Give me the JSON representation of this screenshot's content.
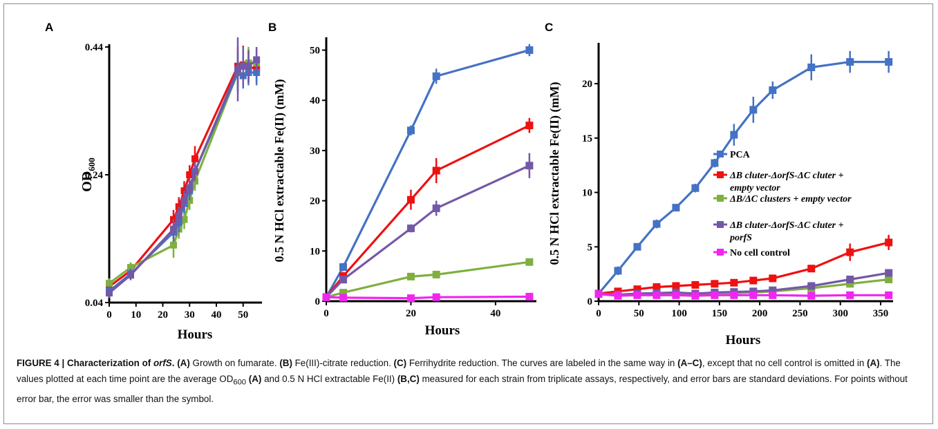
{
  "colors": {
    "blue": "#4472c4",
    "red": "#ee1111",
    "green": "#7fb03f",
    "purple": "#7458a8",
    "magenta": "#f025f0"
  },
  "chart_data": [
    {
      "panel_label": "A",
      "type": "line",
      "xlabel": "Hours",
      "ylabel": "OD600",
      "ylabel_main": "OD",
      "ylabel_sub": "600",
      "xlim": [
        0,
        56
      ],
      "ylim": [
        0.04,
        0.44
      ],
      "xticks": [
        0,
        10,
        20,
        30,
        40,
        50
      ],
      "yticks": [
        0.04,
        0.24,
        0.44
      ],
      "ytick_labels": [
        "0.04",
        "0.24",
        "0.44"
      ],
      "series": [
        {
          "color_key": "red",
          "x": [
            0,
            8,
            24,
            26,
            28,
            30,
            32,
            48,
            50,
            52,
            55
          ],
          "y": [
            0.065,
            0.09,
            0.17,
            0.19,
            0.215,
            0.24,
            0.265,
            0.41,
            0.412,
            0.41,
            0.405
          ],
          "err": [
            0.008,
            0.008,
            0.015,
            0.015,
            0.015,
            0.015,
            0.02,
            0.03,
            0.03,
            0.025,
            0.02
          ]
        },
        {
          "color_key": "green",
          "x": [
            0,
            8,
            24,
            26,
            28,
            30,
            32,
            48,
            50,
            52,
            55
          ],
          "y": [
            0.07,
            0.095,
            0.13,
            0.155,
            0.17,
            0.2,
            0.23,
            0.4,
            0.41,
            0.415,
            0.415
          ],
          "err": [
            0.008,
            0.008,
            0.02,
            0.015,
            0.015,
            0.015,
            0.015,
            0.03,
            0.03,
            0.025,
            0.02
          ]
        },
        {
          "color_key": "blue",
          "x": [
            0,
            8,
            24,
            26,
            28,
            30,
            32,
            48,
            50,
            52,
            55
          ],
          "y": [
            0.058,
            0.085,
            0.15,
            0.165,
            0.195,
            0.215,
            0.245,
            0.4,
            0.395,
            0.4,
            0.4
          ],
          "err": [
            0.008,
            0.008,
            0.015,
            0.015,
            0.015,
            0.015,
            0.015,
            0.03,
            0.02,
            0.02,
            0.02
          ]
        },
        {
          "color_key": "purple",
          "x": [
            0,
            8,
            24,
            26,
            28,
            30,
            32,
            48,
            50,
            52,
            55
          ],
          "y": [
            0.055,
            0.083,
            0.155,
            0.175,
            0.2,
            0.22,
            0.245,
            0.405,
            0.41,
            0.41,
            0.42
          ],
          "err": [
            0.008,
            0.008,
            0.015,
            0.015,
            0.015,
            0.015,
            0.015,
            0.05,
            0.03,
            0.025,
            0.02
          ]
        }
      ]
    },
    {
      "panel_label": "B",
      "type": "line",
      "xlabel": "Hours",
      "ylabel": "0.5 N HCl extractable Fe(II) (mM)",
      "xlim": [
        0,
        49
      ],
      "ylim": [
        0,
        52
      ],
      "xticks": [
        0,
        20,
        40
      ],
      "yticks": [
        0,
        10,
        20,
        30,
        40,
        50
      ],
      "series": [
        {
          "color_key": "blue",
          "x": [
            0,
            4,
            20,
            26,
            48
          ],
          "y": [
            0.8,
            6.8,
            34,
            44.8,
            50
          ],
          "err": [
            0.3,
            0.8,
            1.0,
            1.5,
            1.2
          ]
        },
        {
          "color_key": "red",
          "x": [
            0,
            4,
            20,
            26,
            48
          ],
          "y": [
            0.8,
            5.0,
            20.2,
            26,
            35
          ],
          "err": [
            0.3,
            0.8,
            2.0,
            2.5,
            1.5
          ]
        },
        {
          "color_key": "purple",
          "x": [
            0,
            4,
            20,
            26,
            48
          ],
          "y": [
            0.8,
            4.3,
            14.5,
            18.5,
            27
          ],
          "err": [
            0.3,
            0.6,
            0.8,
            1.5,
            2.5
          ]
        },
        {
          "color_key": "green",
          "x": [
            0,
            4,
            20,
            26,
            48
          ],
          "y": [
            0.8,
            1.7,
            4.9,
            5.3,
            7.8
          ],
          "err": [
            0.3,
            0.4,
            0.5,
            0.5,
            0.6
          ]
        },
        {
          "color_key": "magenta",
          "x": [
            0,
            4,
            20,
            26,
            48
          ],
          "y": [
            0.8,
            0.7,
            0.6,
            0.8,
            0.9
          ],
          "err": [
            0.2,
            0.2,
            0.3,
            0.3,
            0.3
          ]
        }
      ]
    },
    {
      "panel_label": "C",
      "type": "line",
      "xlabel": "Hours",
      "ylabel": "0.5 N HCl extractable Fe(II) (mM)",
      "xlim": [
        0,
        362
      ],
      "ylim": [
        0,
        23.5
      ],
      "xticks": [
        0,
        50,
        100,
        150,
        200,
        250,
        300,
        350
      ],
      "yticks": [
        0,
        5,
        10,
        15,
        20
      ],
      "legend_position": "center-right",
      "series": [
        {
          "color_key": "blue",
          "name": "PCA",
          "x": [
            0,
            24,
            48,
            72,
            96,
            120,
            144,
            168,
            192,
            216,
            264,
            312,
            360
          ],
          "y": [
            0.7,
            2.8,
            5.0,
            7.1,
            8.6,
            10.4,
            12.7,
            15.3,
            17.6,
            19.4,
            21.5,
            22.0,
            22.0
          ],
          "err": [
            0.3,
            0.4,
            0.3,
            0.4,
            0.3,
            0.4,
            0.4,
            1.0,
            1.2,
            0.8,
            1.2,
            1.0,
            1.0
          ]
        },
        {
          "color_key": "red",
          "name": "ΔB cluter-ΔorfS-ΔC cluter + empty vector",
          "x": [
            0,
            24,
            48,
            72,
            96,
            120,
            144,
            168,
            192,
            216,
            264,
            312,
            360
          ],
          "y": [
            0.7,
            0.9,
            1.1,
            1.3,
            1.4,
            1.5,
            1.6,
            1.7,
            1.9,
            2.1,
            3.0,
            4.5,
            5.4
          ],
          "err": [
            0.2,
            0.2,
            0.2,
            0.2,
            0.2,
            0.2,
            0.2,
            0.2,
            0.2,
            0.2,
            0.3,
            0.8,
            0.7
          ]
        },
        {
          "color_key": "green",
          "name": "ΔB/ΔC clusters + empty vector",
          "x": [
            0,
            24,
            48,
            72,
            96,
            120,
            144,
            168,
            192,
            216,
            264,
            312,
            360
          ],
          "y": [
            0.7,
            0.6,
            0.6,
            0.65,
            0.7,
            0.65,
            0.7,
            0.75,
            0.8,
            0.9,
            1.2,
            1.6,
            2.0
          ],
          "err": [
            0.2,
            0.2,
            0.2,
            0.2,
            0.2,
            0.2,
            0.2,
            0.2,
            0.2,
            0.2,
            0.2,
            0.2,
            0.3
          ]
        },
        {
          "color_key": "purple",
          "name": "ΔB cluter-ΔorfS-ΔC cluter + porfS",
          "x": [
            0,
            24,
            48,
            72,
            96,
            120,
            144,
            168,
            192,
            216,
            264,
            312,
            360
          ],
          "y": [
            0.7,
            0.6,
            0.7,
            0.75,
            0.8,
            0.7,
            0.8,
            0.85,
            0.9,
            1.0,
            1.4,
            2.0,
            2.6
          ],
          "err": [
            0.2,
            0.2,
            0.2,
            0.2,
            0.2,
            0.2,
            0.2,
            0.2,
            0.2,
            0.2,
            0.2,
            0.3,
            0.3
          ]
        },
        {
          "color_key": "magenta",
          "name": "No cell control",
          "x": [
            0,
            24,
            48,
            72,
            96,
            120,
            144,
            168,
            192,
            216,
            264,
            312,
            360
          ],
          "y": [
            0.65,
            0.5,
            0.55,
            0.55,
            0.55,
            0.5,
            0.55,
            0.55,
            0.55,
            0.55,
            0.5,
            0.55,
            0.55
          ],
          "err": [
            0.2,
            0.2,
            0.2,
            0.2,
            0.2,
            0.2,
            0.2,
            0.2,
            0.2,
            0.2,
            0.2,
            0.2,
            0.2
          ]
        }
      ],
      "legend": [
        {
          "color_key": "blue",
          "lines": [
            "PCA"
          ]
        },
        {
          "color_key": "red",
          "lines": [
            "ΔB cluter-ΔorfS-ΔC cluter +",
            "empty vector"
          ]
        },
        {
          "color_key": "green",
          "lines": [
            "ΔB/ΔC clusters + empty vector"
          ]
        },
        {
          "color_key": "purple",
          "lines": [
            "ΔB cluter-ΔorfS-ΔC cluter +",
            "porfS"
          ]
        },
        {
          "color_key": "magenta",
          "lines": [
            "No cell control"
          ]
        }
      ]
    }
  ],
  "caption": {
    "fig_label": "FIGURE 4 | Characterization of ",
    "fig_label_gene": "orfS",
    "fig_label_end": ".",
    "a_tag": "(A)",
    "a_text": " Growth on fumarate. ",
    "b_tag": "(B)",
    "b_text": " Fe(III)-citrate reduction. ",
    "c_tag": "(C)",
    "c_text": " Ferrihydrite reduction. The curves are labeled in the same way in ",
    "ac_tag": "(A–C)",
    "ac_text": ", except that no cell control is omitted in ",
    "a2_tag": "(A)",
    "a2_text": ". The values plotted at each time point are the average OD",
    "od_sub": "600",
    "a3_pre": " ",
    "a3_tag": "(A)",
    "a3_text": " and 0.5 N HCl extractable Fe(II) ",
    "bc_tag": "(B,C)",
    "bc_text": " measured for each strain from triplicate assays, respectively, and error bars are standard deviations. For points without error bar, the error was smaller than the symbol."
  }
}
